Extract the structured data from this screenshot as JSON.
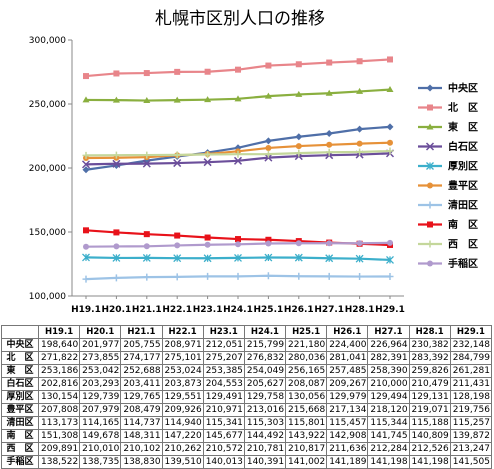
{
  "chart_data": {
    "type": "line",
    "title": "札幌市区別人口の推移",
    "xlabel": "",
    "ylabel": "",
    "ylim": [
      100000,
      300000
    ],
    "yticks": [
      "100,000",
      "150,000",
      "200,000",
      "250,000",
      "300,000"
    ],
    "categories": [
      "H19.1",
      "H20.1",
      "H21.1",
      "H22.1",
      "H23.1",
      "H24.1",
      "H25.1",
      "H26.1",
      "H27.1",
      "H28.1",
      "H29.1"
    ],
    "grid": false,
    "legend_position": "right",
    "series": [
      {
        "name": "中央区",
        "color": "#4F6FA8",
        "marker": "diamond",
        "values": [
          198640,
          201977,
          205755,
          208971,
          212051,
          215799,
          221180,
          224400,
          226964,
          230382,
          232148
        ]
      },
      {
        "name": "北　区",
        "color": "#E8858A",
        "marker": "square",
        "values": [
          271822,
          273855,
          274177,
          275101,
          275207,
          276832,
          280036,
          281041,
          282391,
          283392,
          284799
        ]
      },
      {
        "name": "東　区",
        "color": "#8AAF3F",
        "marker": "triangle",
        "values": [
          253186,
          253042,
          252688,
          253024,
          253385,
          254049,
          256165,
          257485,
          258390,
          259826,
          261281
        ]
      },
      {
        "name": "白石区",
        "color": "#6B4E9A",
        "marker": "x",
        "values": [
          202816,
          203293,
          203411,
          203873,
          204553,
          205627,
          208087,
          209267,
          210000,
          210479,
          211431
        ]
      },
      {
        "name": "厚別区",
        "color": "#3CAFCB",
        "marker": "star",
        "values": [
          130154,
          129739,
          129765,
          129551,
          129491,
          129758,
          130056,
          129979,
          129494,
          129131,
          128198
        ]
      },
      {
        "name": "豊平区",
        "color": "#E69138",
        "marker": "circle",
        "values": [
          207808,
          207979,
          208479,
          209926,
          210971,
          213016,
          215668,
          217134,
          218120,
          219071,
          219756
        ]
      },
      {
        "name": "清田区",
        "color": "#9DC3E6",
        "marker": "plus",
        "values": [
          113173,
          114165,
          114737,
          114940,
          115341,
          115303,
          115801,
          115457,
          115344,
          115188,
          115257
        ]
      },
      {
        "name": "南　区",
        "color": "#E8121A",
        "marker": "square",
        "values": [
          151308,
          149678,
          148311,
          147220,
          145677,
          144492,
          143922,
          142908,
          141745,
          140809,
          139872
        ]
      },
      {
        "name": "西　区",
        "color": "#C4D79B",
        "marker": "plus",
        "values": [
          209891,
          210010,
          210102,
          210262,
          210572,
          210781,
          210817,
          211636,
          212284,
          212526,
          213247
        ]
      },
      {
        "name": "手稲区",
        "color": "#B09ACD",
        "marker": "circle",
        "values": [
          138522,
          138735,
          138830,
          139510,
          140013,
          140391,
          141002,
          141189,
          141198,
          141198,
          141505
        ]
      }
    ]
  }
}
